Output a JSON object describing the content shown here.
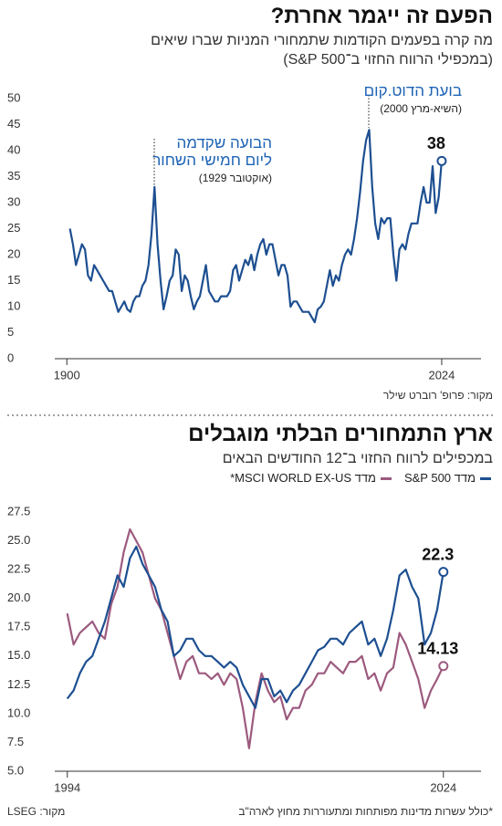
{
  "chart_data": [
    {
      "type": "line",
      "title": "הפעם זה ייגמר אחרת?",
      "subtitle": [
        "מה קרה בפעמים הקודמות שתמחורי המניות שברו שיאים",
        "(במכפילי הרווח החזוי ב־S&P 500)"
      ],
      "xlim": [
        1896,
        2037
      ],
      "ylim": [
        0,
        50
      ],
      "xticks": [
        1900,
        2024
      ],
      "yticks": [
        0,
        5,
        10,
        15,
        20,
        25,
        30,
        35,
        40,
        45,
        50
      ],
      "x": [
        1901,
        1902,
        1903,
        1904,
        1905,
        1906,
        1907,
        1908,
        1909,
        1910,
        1911,
        1912,
        1913,
        1914,
        1915,
        1916,
        1917,
        1918,
        1919,
        1920,
        1921,
        1922,
        1923,
        1924,
        1925,
        1926,
        1927,
        1928,
        1929,
        1930,
        1931,
        1932,
        1933,
        1934,
        1935,
        1936,
        1937,
        1938,
        1939,
        1940,
        1941,
        1942,
        1943,
        1944,
        1945,
        1946,
        1947,
        1948,
        1949,
        1950,
        1951,
        1952,
        1953,
        1954,
        1955,
        1956,
        1957,
        1958,
        1959,
        1960,
        1961,
        1962,
        1963,
        1964,
        1965,
        1966,
        1967,
        1968,
        1969,
        1970,
        1971,
        1972,
        1973,
        1974,
        1975,
        1976,
        1977,
        1978,
        1979,
        1980,
        1981,
        1982,
        1983,
        1984,
        1985,
        1986,
        1987,
        1988,
        1989,
        1990,
        1991,
        1992,
        1993,
        1994,
        1995,
        1996,
        1997,
        1998,
        1999,
        2000,
        2001,
        2002,
        2003,
        2004,
        2005,
        2006,
        2007,
        2008,
        2009,
        2010,
        2011,
        2012,
        2013,
        2014,
        2015,
        2016,
        2017,
        2018,
        2019,
        2020,
        2021,
        2022,
        2023,
        2024
      ],
      "values": [
        25,
        22,
        18,
        20,
        22,
        21,
        16,
        15,
        18,
        17,
        16,
        15,
        14,
        13,
        13,
        11,
        9,
        10,
        11,
        9.5,
        9,
        11,
        12,
        12,
        14,
        15,
        18,
        24,
        33,
        22,
        15,
        9.5,
        12,
        15,
        16,
        21,
        20,
        13,
        16,
        15,
        12,
        9.5,
        11,
        12,
        15,
        18,
        13,
        12,
        11,
        11,
        12,
        12,
        12,
        13,
        17,
        18,
        15,
        17,
        19,
        18,
        20,
        17,
        20,
        22,
        23,
        20,
        22,
        22,
        19,
        16,
        18,
        18,
        16,
        10,
        11,
        11,
        10,
        9,
        9,
        9,
        8,
        7,
        9.5,
        10,
        11,
        14,
        17,
        14,
        16,
        15,
        18,
        20,
        21,
        20,
        23,
        27,
        32,
        38,
        42,
        44,
        33,
        26,
        23,
        27,
        26,
        27,
        27,
        20,
        15,
        21,
        22,
        21,
        24,
        26,
        26,
        26,
        30,
        33,
        30,
        30,
        37,
        28,
        31,
        38
      ],
      "color": "#1d4f91",
      "annotations": [
        {
          "lines": [
            "הבועה שקדמה",
            "ליום חמישי השחור"
          ],
          "note": "(אוקטובר 1929)"
        },
        {
          "lines": [
            "בועת הדוט.קום"
          ],
          "note": "(השיא-מרץ 2000)"
        }
      ],
      "source": "מקור: פרופ' רוברט שילר"
    },
    {
      "type": "line",
      "title": "ארץ התמחורים הבלתי מוגבלים",
      "subtitle": [
        "במכפילים לרווח החזוי ב־12 החודשים הבאים"
      ],
      "xlim": [
        1993,
        2027
      ],
      "ylim": [
        5,
        27.5
      ],
      "xticks": [
        1994,
        2024
      ],
      "yticks": [
        {
          "value": 5,
          "label": "5.0"
        },
        7.5,
        {
          "value": 10,
          "label": "10.0"
        },
        12.5,
        {
          "value": 15,
          "label": "15.0"
        },
        17.5,
        {
          "value": 20,
          "label": "20.0"
        },
        22.5,
        {
          "value": 25,
          "label": "25.0"
        },
        27.5
      ],
      "x": [
        1994,
        1994.5,
        1995,
        1995.5,
        1996,
        1996.5,
        1997,
        1997.5,
        1998,
        1998.5,
        1999,
        1999.5,
        2000,
        2000.5,
        2001,
        2001.5,
        2002,
        2002.5,
        2003,
        2003.5,
        2004,
        2004.5,
        2005,
        2005.5,
        2006,
        2006.5,
        2007,
        2007.5,
        2008,
        2008.5,
        2009,
        2009.5,
        2010,
        2010.5,
        2011,
        2011.5,
        2012,
        2012.5,
        2013,
        2013.5,
        2014,
        2014.5,
        2015,
        2015.5,
        2016,
        2016.5,
        2017,
        2017.5,
        2018,
        2018.5,
        2019,
        2019.5,
        2020,
        2020.5,
        2021,
        2021.5,
        2022,
        2022.5,
        2023,
        2023.5,
        2024
      ],
      "series": [
        {
          "name": "מדד S&P 500",
          "color": "#1d4f91",
          "values": [
            11.3,
            12,
            13.5,
            14.5,
            15,
            16.5,
            18,
            20,
            22,
            21,
            23.5,
            24.5,
            23,
            22,
            21,
            19,
            18,
            15,
            15.5,
            16.5,
            16.5,
            15.5,
            15,
            15,
            14.5,
            14,
            14.5,
            14,
            12.5,
            11.5,
            10.5,
            13,
            13,
            11.5,
            12,
            11,
            12,
            12.5,
            13.5,
            14.5,
            15.5,
            15.8,
            16.5,
            16.5,
            16,
            17,
            17.5,
            18,
            16,
            16.5,
            15,
            16.5,
            19,
            22,
            22.5,
            21,
            20,
            16,
            17,
            19,
            22.3
          ]
        },
        {
          "name": "מדד MSCI WORLD EX-US*",
          "color": "#9c5a7e",
          "values": [
            18.7,
            16,
            17,
            17.5,
            18,
            17,
            16.5,
            19.5,
            21,
            24,
            26,
            25,
            24,
            22,
            20,
            19,
            17,
            15,
            13,
            14.5,
            15,
            13.5,
            13.5,
            13,
            13.5,
            12.5,
            13.5,
            13,
            10.5,
            7,
            11,
            13.5,
            12,
            11,
            11.5,
            9.5,
            10.5,
            10.5,
            12,
            12.5,
            13.5,
            13.5,
            14.5,
            14,
            13.5,
            14.5,
            14.5,
            15,
            13,
            13.5,
            12,
            13.5,
            14,
            17,
            16,
            14.5,
            13,
            10.5,
            12,
            13,
            14.13
          ]
        }
      ],
      "footnote": "*כולל עשרות מדינות מפותחות ומתעוררות מחוץ לארה\"ב",
      "source": "מקור: LSEG"
    }
  ]
}
